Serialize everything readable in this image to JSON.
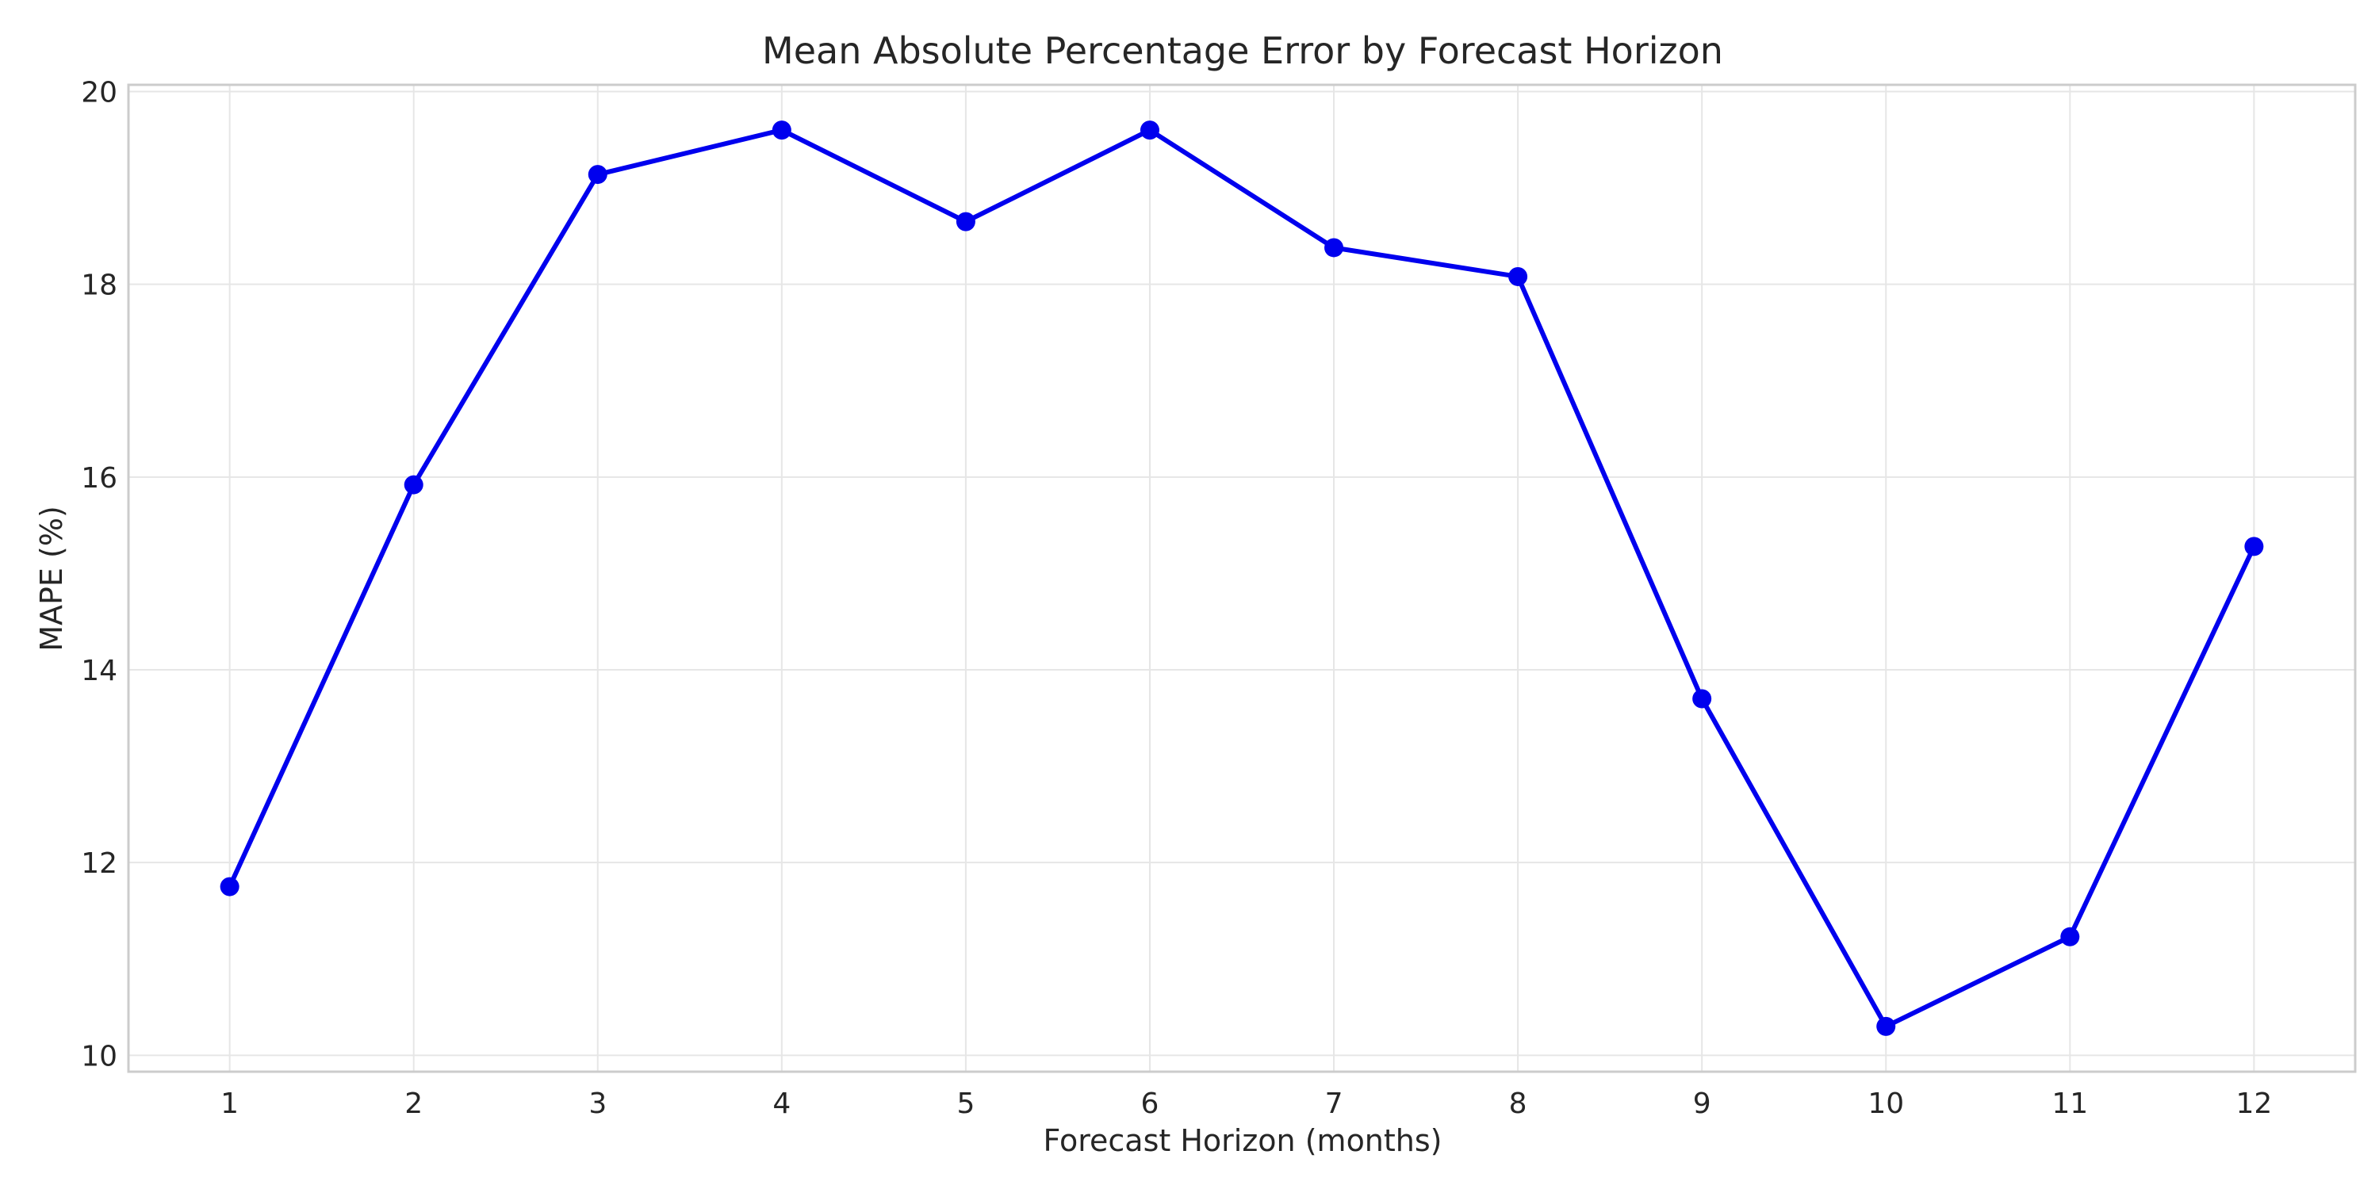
{
  "chart_data": {
    "type": "line",
    "title": "Mean Absolute Percentage Error by Forecast Horizon",
    "xlabel": "Forecast Horizon (months)",
    "ylabel": "MAPE (%)",
    "x": [
      1,
      2,
      3,
      4,
      5,
      6,
      7,
      8,
      9,
      10,
      11,
      12
    ],
    "xticks": [
      "1",
      "2",
      "3",
      "4",
      "5",
      "6",
      "7",
      "8",
      "9",
      "10",
      "11",
      "12"
    ],
    "yticks": [
      "10",
      "12",
      "14",
      "16",
      "18",
      "20"
    ],
    "xlim": [
      0.45,
      12.55
    ],
    "ylim": [
      9.83,
      20.07
    ],
    "grid": true,
    "series": [
      {
        "color": "#0000ee",
        "marker": "circle",
        "values": [
          11.75,
          15.92,
          19.14,
          19.6,
          18.65,
          19.6,
          18.38,
          18.08,
          13.7,
          10.3,
          11.23,
          15.28
        ]
      }
    ]
  }
}
